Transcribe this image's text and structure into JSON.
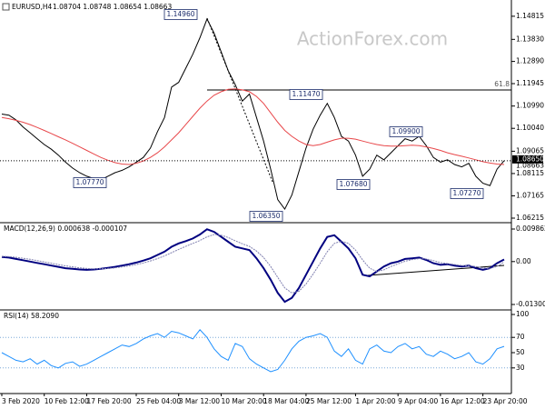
{
  "chart_data": [
    {
      "type": "line",
      "title": "EURUSD,H4",
      "subtitle": "1.08704 1.08748 1.08654 1.08663",
      "watermark": "ActionForex.com",
      "ylim": [
        1.0606,
        1.1543
      ],
      "yticks": [
        1.14815,
        {
          "value": 1.1383,
          "label": "1.13830"
        },
        {
          "value": 1.1289,
          "label": "1.12890"
        },
        1.11945,
        {
          "value": 1.1099,
          "label": "1.10990"
        },
        {
          "value": 1.1004,
          "label": "1.10040"
        },
        1.09065,
        1.08115,
        1.07165,
        1.06215
      ],
      "series": [
        {
          "color": "#000000",
          "values": [
            1.1065,
            1.106,
            1.104,
            1.101,
            1.0985,
            1.096,
            1.0935,
            1.0915,
            1.089,
            1.086,
            1.0835,
            1.0815,
            1.08,
            1.079,
            1.0785,
            1.08,
            1.0815,
            1.0825,
            1.084,
            1.086,
            1.088,
            1.092,
            1.099,
            1.105,
            1.118,
            1.12,
            1.126,
            1.132,
            1.139,
            1.147,
            1.141,
            1.133,
            1.125,
            1.119,
            1.112,
            1.115,
            1.105,
            1.095,
            1.083,
            1.07,
            1.066,
            1.072,
            1.082,
            1.092,
            1.1,
            1.106,
            1.111,
            1.105,
            1.097,
            1.095,
            1.089,
            1.08,
            1.083,
            1.089,
            1.087,
            1.09,
            1.093,
            1.096,
            1.095,
            1.097,
            1.093,
            1.088,
            1.086,
            1.087,
            1.085,
            1.084,
            1.0855,
            1.08,
            1.077,
            1.076,
            1.083,
            1.0866
          ]
        },
        {
          "color": "#e8474a",
          "values": [
            1.105,
            1.1045,
            1.1038,
            1.103,
            1.102,
            1.1008,
            1.0995,
            1.0982,
            1.0968,
            1.0955,
            1.094,
            1.0925,
            1.091,
            1.0895,
            1.088,
            1.0868,
            1.0858,
            1.0852,
            1.085,
            1.0855,
            1.0865,
            1.088,
            1.09,
            1.0925,
            1.0955,
            1.0985,
            1.102,
            1.1055,
            1.109,
            1.112,
            1.1145,
            1.116,
            1.117,
            1.1172,
            1.1168,
            1.116,
            1.114,
            1.111,
            1.107,
            1.103,
            1.0995,
            1.097,
            1.095,
            1.0935,
            1.093,
            1.0935,
            1.0945,
            1.0955,
            1.0962,
            1.0962,
            1.0958,
            1.095,
            1.0942,
            1.0935,
            1.093,
            1.0928,
            1.0928,
            1.093,
            1.0932,
            1.093,
            1.0925,
            1.0918,
            1.091,
            1.09,
            1.0892,
            1.0885,
            1.0878,
            1.087,
            1.0862,
            1.0856,
            1.0852,
            1.085
          ]
        }
      ],
      "annotations": [
        "1.14960",
        "1.11470",
        "1.07770",
        "1.06350",
        "1.07680",
        "1.09900",
        "1.07270",
        "61.8"
      ],
      "price_tags": [
        "1.08650",
        "1.08663"
      ]
    },
    {
      "type": "line",
      "title": "MACD(12,26,9) 0.000638 -0.000107",
      "ylim": [
        -0.01438,
        0.01124
      ],
      "yticks": [
        0.009862,
        {
          "value": 0,
          "label": "0.00"
        },
        -0.013002
      ],
      "series": [
        {
          "color": "#000080",
          "values": [
            0.0014,
            0.0012,
            0.0008,
            0.0004,
            0,
            -0.0004,
            -0.0008,
            -0.0012,
            -0.0016,
            -0.002,
            -0.0022,
            -0.0024,
            -0.0025,
            -0.0024,
            -0.0022,
            -0.0019,
            -0.0016,
            -0.0012,
            -0.0008,
            -0.0003,
            0.0003,
            0.001,
            0.002,
            0.003,
            0.0045,
            0.0055,
            0.0062,
            0.007,
            0.0082,
            0.0098,
            0.009,
            0.0075,
            0.006,
            0.0045,
            0.004,
            0.0035,
            0.001,
            -0.002,
            -0.0055,
            -0.0095,
            -0.0122,
            -0.011,
            -0.008,
            -0.004,
            0,
            0.004,
            0.0075,
            0.008,
            0.006,
            0.004,
            0.001,
            -0.004,
            -0.0045,
            -0.003,
            -0.0015,
            -0.0005,
            0,
            0.0008,
            0.001,
            0.0012,
            0.0005,
            -0.0005,
            -0.001,
            -0.0008,
            -0.0012,
            -0.0015,
            -0.0012,
            -0.002,
            -0.0025,
            -0.002,
            -0.0005,
            0.000638
          ]
        },
        {
          "color": "#8080b0",
          "values": [
            0.0016,
            0.0015,
            0.0013,
            0.001,
            0.0007,
            0.0003,
            -0.0001,
            -0.0005,
            -0.0009,
            -0.0013,
            -0.0016,
            -0.0019,
            -0.0021,
            -0.0022,
            -0.0022,
            -0.0021,
            -0.0019,
            -0.0016,
            -0.0013,
            -0.0009,
            -0.0004,
            0.0002,
            0.0009,
            0.0017,
            0.0027,
            0.0037,
            0.0046,
            0.0055,
            0.0064,
            0.0075,
            0.0082,
            0.008,
            0.0073,
            0.0063,
            0.0054,
            0.0046,
            0.0032,
            0.0012,
            -0.0015,
            -0.0048,
            -0.008,
            -0.0095,
            -0.009,
            -0.0068,
            -0.0038,
            -0.0005,
            0.003,
            0.0055,
            0.0062,
            0.0055,
            0.0035,
            0.0005,
            -0.002,
            -0.003,
            -0.0025,
            -0.0015,
            -0.0007,
            0.0001,
            0.0006,
            0.0009,
            0.0008,
            0.0003,
            -0.0003,
            -0.0006,
            -0.0009,
            -0.0012,
            -0.0012,
            -0.0015,
            -0.0019,
            -0.0021,
            -0.0015,
            -0.000107
          ]
        }
      ]
    },
    {
      "type": "line",
      "title": "RSI(14) 58.2090",
      "ylim": [
        0,
        100
      ],
      "yticks": [
        100,
        70,
        50,
        30
      ],
      "levels": [
        70,
        30
      ],
      "categories": [
        "3 Feb 2020",
        null,
        null,
        null,
        null,
        null,
        "10 Feb 12:00",
        null,
        null,
        null,
        null,
        null,
        "17 Feb 20:00",
        null,
        null,
        null,
        null,
        null,
        null,
        "25 Feb 04:00",
        null,
        null,
        null,
        null,
        null,
        "3 Mar 12:00",
        null,
        null,
        null,
        null,
        null,
        "10 Mar 20:00",
        null,
        null,
        null,
        null,
        null,
        "18 Mar 04:00",
        null,
        null,
        null,
        null,
        null,
        "25 Mar 12:00",
        null,
        null,
        null,
        null,
        null,
        null,
        "1 Apr 20:00",
        null,
        null,
        null,
        null,
        null,
        "9 Apr 04:00",
        null,
        null,
        null,
        null,
        null,
        "16 Apr 12:00",
        null,
        null,
        null,
        null,
        null,
        "23 Apr 20:00",
        null,
        null,
        null
      ],
      "series": [
        {
          "color": "#1e90ff",
          "values": [
            50,
            45,
            40,
            38,
            42,
            35,
            40,
            33,
            30,
            36,
            38,
            32,
            35,
            40,
            45,
            50,
            55,
            60,
            58,
            62,
            68,
            72,
            75,
            70,
            78,
            76,
            72,
            68,
            80,
            70,
            55,
            45,
            40,
            62,
            58,
            42,
            35,
            30,
            25,
            28,
            40,
            55,
            65,
            70,
            72,
            75,
            70,
            52,
            45,
            55,
            40,
            35,
            55,
            60,
            52,
            50,
            58,
            62,
            55,
            58,
            48,
            45,
            52,
            48,
            42,
            45,
            50,
            38,
            35,
            42,
            55,
            58.209
          ]
        }
      ]
    }
  ]
}
